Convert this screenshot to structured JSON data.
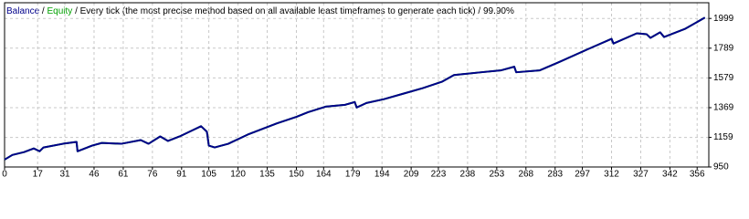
{
  "chart_data": {
    "type": "line",
    "separator": "/",
    "model": "Every tick (the most precise method based on all available least timeframes to generate each tick)",
    "quality": "99.90%",
    "x": [
      0,
      4,
      10,
      15,
      18,
      20,
      30,
      37,
      37.5,
      45,
      50,
      60,
      70,
      74,
      80,
      84,
      90,
      97,
      101,
      104,
      105,
      108,
      115,
      125,
      140,
      150,
      156,
      165,
      175,
      180,
      181,
      186,
      195,
      205,
      215,
      225,
      231,
      245,
      255,
      262,
      263,
      275,
      285,
      300,
      312,
      313,
      325,
      330,
      332,
      337,
      339,
      350,
      360
    ],
    "series": [
      {
        "name": "Balance",
        "color": "#00008b",
        "values": [
          1002,
          1035,
          1055,
          1081,
          1061,
          1088,
          1114,
          1127,
          1061,
          1101,
          1120,
          1114,
          1140,
          1114,
          1166,
          1134,
          1166,
          1212,
          1238,
          1199,
          1101,
          1088,
          1114,
          1179,
          1258,
          1304,
          1337,
          1376,
          1389,
          1409,
          1370,
          1402,
          1429,
          1468,
          1507,
          1553,
          1599,
          1619,
          1632,
          1658,
          1619,
          1632,
          1691,
          1783,
          1855,
          1822,
          1894,
          1888,
          1862,
          1901,
          1868,
          1927,
          2005
        ]
      },
      {
        "name": "Equity",
        "color": "#00a000",
        "values": [
          1002,
          1035,
          1055,
          1081,
          1061,
          1088,
          1114,
          1127,
          1061,
          1101,
          1120,
          1114,
          1140,
          1114,
          1166,
          1134,
          1166,
          1212,
          1238,
          1199,
          1101,
          1088,
          1114,
          1179,
          1258,
          1304,
          1337,
          1376,
          1389,
          1409,
          1370,
          1402,
          1429,
          1468,
          1507,
          1553,
          1599,
          1619,
          1632,
          1658,
          1619,
          1632,
          1691,
          1783,
          1855,
          1822,
          1894,
          1888,
          1862,
          1901,
          1868,
          1927,
          2005
        ]
      }
    ],
    "xlim": [
      0,
      362
    ],
    "xticks": [
      0,
      17,
      31,
      46,
      61,
      76,
      91,
      105,
      120,
      135,
      150,
      164,
      179,
      194,
      209,
      223,
      238,
      253,
      268,
      283,
      297,
      312,
      327,
      342,
      356
    ],
    "ylim": [
      950,
      2110
    ],
    "yticks": [
      950,
      1159,
      1369,
      1579,
      1789,
      1999
    ],
    "grid": true
  }
}
